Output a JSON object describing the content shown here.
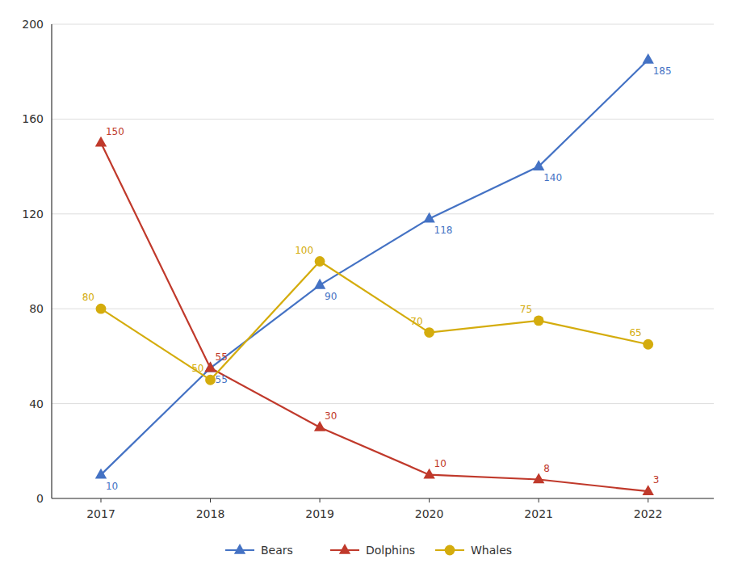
{
  "chart_data": {
    "type": "line",
    "x": [
      2017,
      2018,
      2019,
      2020,
      2021,
      2022
    ],
    "series": [
      {
        "name": "Bears",
        "color": "#4472C4",
        "marker": "triangle",
        "values": [
          10,
          55,
          90,
          118,
          140,
          185
        ]
      },
      {
        "name": "Dolphins",
        "color": "#C0392B",
        "marker": "triangle",
        "values": [
          150,
          55,
          30,
          10,
          8,
          3
        ]
      },
      {
        "name": "Whales",
        "color": "#D4AC0D",
        "marker": "circle",
        "values": [
          80,
          50,
          100,
          70,
          75,
          65
        ]
      }
    ],
    "xlim": [
      2016.55,
      2022.6
    ],
    "xticks": [
      2017,
      2018,
      2019,
      2020,
      2021,
      2022
    ],
    "ylim": [
      0,
      200
    ],
    "yticks": [
      0,
      40,
      80,
      120,
      160,
      200
    ],
    "grid": true,
    "data_labels": true,
    "legend": "bottom"
  }
}
